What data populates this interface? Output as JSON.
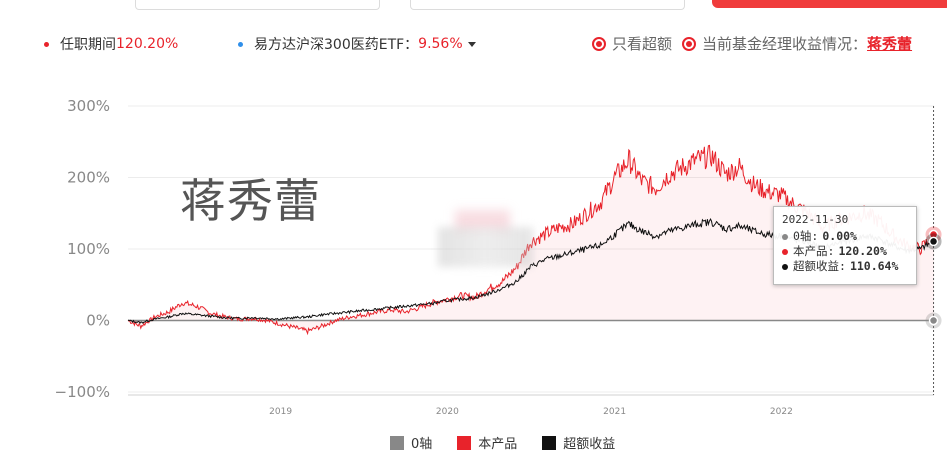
{
  "summary": {
    "tenure_label": "任职期间",
    "tenure_value": "120.20%",
    "benchmark_label": "易方达沪深300医药ETF：",
    "benchmark_value": "9.56%"
  },
  "options": {
    "excess_only_label": "只看超额",
    "manager_label": "当前基金经理收益情况：",
    "manager_name": "蒋秀蕾"
  },
  "watermark_text": "蒋秀蕾",
  "tooltip": {
    "date": "2022-11-30",
    "rows": [
      {
        "label": "0轴:",
        "value": "0.00%",
        "color": "#888888"
      },
      {
        "label": "本产品:",
        "value": "120.20%",
        "color": "#e8232b"
      },
      {
        "label": "超额收益:",
        "value": "110.64%",
        "color": "#111111"
      }
    ]
  },
  "legend": [
    {
      "label": "0轴",
      "color": "#888888"
    },
    {
      "label": "本产品",
      "color": "#e8232b"
    },
    {
      "label": "超额收益",
      "color": "#111111"
    }
  ],
  "chart_data": {
    "type": "line",
    "title": "",
    "xlabel": "",
    "ylabel": "",
    "ylim": [
      -100,
      300
    ],
    "yticks": [
      {
        "value": 300,
        "label": "300%"
      },
      {
        "value": 200,
        "label": "200%"
      },
      {
        "value": 100,
        "label": "100%"
      },
      {
        "value": 0,
        "label": "0%"
      },
      {
        "value": -100,
        "label": "−100%"
      }
    ],
    "xlim": [
      "2018-02-01",
      "2022-12-01"
    ],
    "xticks": [
      {
        "value": "2019-01-01",
        "label": "2019"
      },
      {
        "value": "2020-01-01",
        "label": "2020"
      },
      {
        "value": "2021-01-01",
        "label": "2021"
      },
      {
        "value": "2022-01-01",
        "label": "2022"
      }
    ],
    "grid": true,
    "legend_position": "bottom",
    "series": [
      {
        "name": "0轴",
        "color": "#888888",
        "x": [
          "2018-02-01",
          "2022-12-01"
        ],
        "y": [
          0,
          0
        ]
      },
      {
        "name": "本产品",
        "color": "#e8232b",
        "x": [
          "2018-02-01",
          "2018-03-01",
          "2018-04-01",
          "2018-05-01",
          "2018-06-01",
          "2018-07-01",
          "2018-08-01",
          "2018-09-01",
          "2018-10-01",
          "2018-11-01",
          "2018-12-01",
          "2019-01-01",
          "2019-02-01",
          "2019-03-01",
          "2019-04-01",
          "2019-05-01",
          "2019-06-01",
          "2019-07-01",
          "2019-08-01",
          "2019-09-01",
          "2019-10-01",
          "2019-11-01",
          "2019-12-01",
          "2020-01-01",
          "2020-02-01",
          "2020-03-01",
          "2020-04-01",
          "2020-05-01",
          "2020-06-01",
          "2020-07-01",
          "2020-08-01",
          "2020-09-01",
          "2020-10-01",
          "2020-11-01",
          "2020-12-01",
          "2021-01-01",
          "2021-02-01",
          "2021-03-01",
          "2021-04-01",
          "2021-05-01",
          "2021-06-01",
          "2021-07-01",
          "2021-08-01",
          "2021-09-01",
          "2021-10-01",
          "2021-11-01",
          "2021-12-01",
          "2022-01-01",
          "2022-02-01",
          "2022-03-01",
          "2022-04-01",
          "2022-05-01",
          "2022-06-01",
          "2022-07-01",
          "2022-08-01",
          "2022-09-01",
          "2022-10-01",
          "2022-11-01",
          "2022-12-01"
        ],
        "y": [
          0,
          -8,
          5,
          12,
          25,
          20,
          10,
          5,
          2,
          3,
          0,
          -5,
          -10,
          -15,
          -8,
          0,
          5,
          8,
          12,
          15,
          12,
          18,
          25,
          30,
          35,
          32,
          45,
          55,
          75,
          110,
          120,
          130,
          135,
          150,
          165,
          200,
          225,
          195,
          185,
          205,
          215,
          225,
          230,
          205,
          215,
          190,
          180,
          175,
          160,
          150,
          130,
          140,
          145,
          150,
          140,
          120,
          105,
          100,
          120.2
        ]
      },
      {
        "name": "超额收益",
        "color": "#111111",
        "x": [
          "2018-02-01",
          "2018-03-01",
          "2018-04-01",
          "2018-05-01",
          "2018-06-01",
          "2018-07-01",
          "2018-08-01",
          "2018-09-01",
          "2018-10-01",
          "2018-11-01",
          "2018-12-01",
          "2019-01-01",
          "2019-02-01",
          "2019-03-01",
          "2019-04-01",
          "2019-05-01",
          "2019-06-01",
          "2019-07-01",
          "2019-08-01",
          "2019-09-01",
          "2019-10-01",
          "2019-11-01",
          "2019-12-01",
          "2020-01-01",
          "2020-02-01",
          "2020-03-01",
          "2020-04-01",
          "2020-05-01",
          "2020-06-01",
          "2020-07-01",
          "2020-08-01",
          "2020-09-01",
          "2020-10-01",
          "2020-11-01",
          "2020-12-01",
          "2021-01-01",
          "2021-02-01",
          "2021-03-01",
          "2021-04-01",
          "2021-05-01",
          "2021-06-01",
          "2021-07-01",
          "2021-08-01",
          "2021-09-01",
          "2021-10-01",
          "2021-11-01",
          "2021-12-01",
          "2022-01-01",
          "2022-02-01",
          "2022-03-01",
          "2022-04-01",
          "2022-05-01",
          "2022-06-01",
          "2022-07-01",
          "2022-08-01",
          "2022-09-01",
          "2022-10-01",
          "2022-11-01",
          "2022-12-01"
        ],
        "y": [
          0,
          -3,
          2,
          5,
          10,
          8,
          6,
          4,
          3,
          4,
          3,
          2,
          4,
          5,
          8,
          10,
          12,
          14,
          16,
          18,
          20,
          22,
          24,
          28,
          30,
          32,
          38,
          45,
          55,
          75,
          85,
          90,
          95,
          100,
          105,
          120,
          135,
          125,
          118,
          125,
          130,
          135,
          138,
          128,
          132,
          125,
          120,
          118,
          112,
          110,
          100,
          108,
          112,
          118,
          115,
          105,
          98,
          100,
          110.64
        ]
      }
    ],
    "tooltip_date": "2022-11-30"
  }
}
